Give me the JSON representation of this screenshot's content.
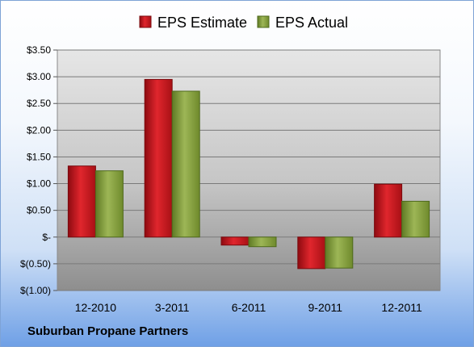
{
  "company": "Suburban Propane Partners",
  "chart_data": {
    "type": "bar",
    "categories": [
      "12-2010",
      "3-2011",
      "6-2011",
      "9-2011",
      "12-2011"
    ],
    "series": [
      {
        "name": "EPS Estimate",
        "values": [
          1.33,
          2.95,
          -0.15,
          -0.59,
          0.99
        ],
        "color": "#c8161d"
      },
      {
        "name": "EPS Actual",
        "values": [
          1.24,
          2.73,
          -0.18,
          -0.58,
          0.67
        ],
        "color": "#8aa044"
      }
    ],
    "ylim": [
      -1.0,
      3.5
    ],
    "yticks": [
      3.5,
      3.0,
      2.5,
      2.0,
      1.5,
      1.0,
      0.5,
      0,
      -0.5,
      -1.0
    ],
    "ytick_labels": [
      "$3.50",
      "$3.00",
      "$2.50",
      "$2.00",
      "$1.50",
      "$1.00",
      "$0.50",
      "$-",
      "$(0.50)",
      "$(1.00)"
    ],
    "grid": true,
    "legend_position": "top-center",
    "title": "",
    "xlabel": "",
    "ylabel": ""
  }
}
